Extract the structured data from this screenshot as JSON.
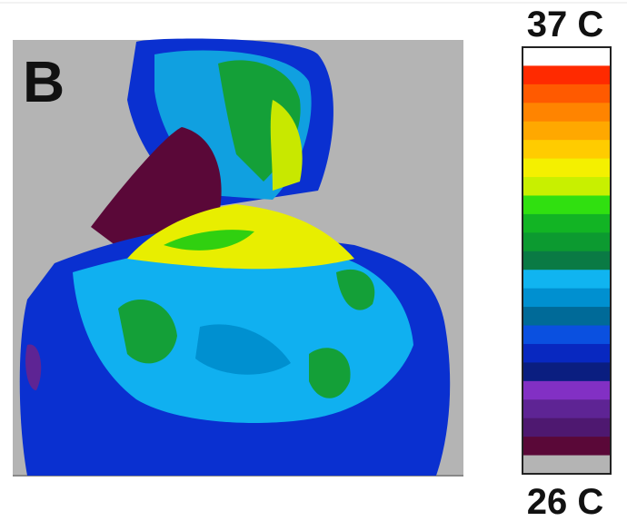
{
  "panel": {
    "label": "B"
  },
  "scale": {
    "max_label": "37 C",
    "min_label": "26 C",
    "colors": [
      "#ffffff",
      "#ff2a00",
      "#ff5a00",
      "#ff8400",
      "#ffa800",
      "#ffcc00",
      "#f4f000",
      "#c8f000",
      "#30e010",
      "#12b424",
      "#0c9a30",
      "#0a7a44",
      "#10b4f0",
      "#0090d0",
      "#006a98",
      "#0a50e0",
      "#0828c0",
      "#0a1e80",
      "#8230c4",
      "#5e2494",
      "#4e1870",
      "#5a0838",
      "#b4b4b4"
    ]
  }
}
